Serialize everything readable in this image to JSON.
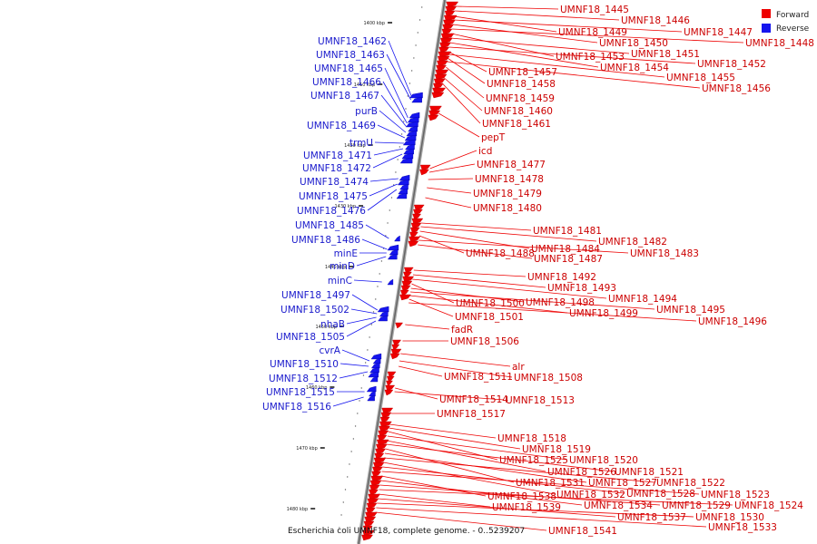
{
  "caption": "Escherichia coli UMNF18, complete genome. - 0..5239207",
  "legend": [
    {
      "label": "Forward",
      "color": "#ee0000"
    },
    {
      "label": "Reverse",
      "color": "#1515ee"
    }
  ],
  "colors": {
    "forward": "#ee0000",
    "reverse": "#1515ee",
    "backbone": "#8a8a8a"
  },
  "kbp_ticks": [
    "1400 kbp",
    "1410 kbp",
    "1420 kbp",
    "1430 kbp",
    "1440 kbp",
    "1450 kbp",
    "1460 kbp",
    "1470 kbp",
    "1480 kbp"
  ],
  "forward_genes": [
    "UMNF18_1445",
    "UMNF18_1446",
    "UMNF18_1449",
    "UMNF18_1447",
    "UMNF18_1450",
    "UMNF18_1448",
    "UMNF18_1453",
    "UMNF18_1451",
    "UMNF18_1454",
    "UMNF18_1452",
    "UMNF18_1457",
    "UMNF18_1455",
    "UMNF18_1458",
    "UMNF18_1456",
    "UMNF18_1459",
    "UMNF18_1460",
    "UMNF18_1461",
    "pepT",
    "icd",
    "UMNF18_1477",
    "UMNF18_1478",
    "UMNF18_1479",
    "UMNF18_1480",
    "UMNF18_1481",
    "UMNF18_1482",
    "UMNF18_1484",
    "UMNF18_1488",
    "UMNF18_1483",
    "UMNF18_1487",
    "UMNF18_1492",
    "UMNF18_1493",
    "UMNF18_1494",
    "UMNF18_1500",
    "UMNF18_1498",
    "UMNF18_1495",
    "UMNF18_1499",
    "UMNF18_1501",
    "UMNF18_1496",
    "fadR",
    "UMNF18_1506",
    "alr",
    "UMNF18_1511",
    "UMNF18_1508",
    "UMNF18_1514",
    "UMNF18_1513",
    "UMNF18_1517",
    "UMNF18_1518",
    "UMNF18_1519",
    "UMNF18_1525",
    "UMNF18_1520",
    "UMNF18_1526",
    "UMNF18_1521",
    "UMNF18_1531",
    "UMNF18_1527",
    "UMNF18_1522",
    "UMNF18_1532",
    "UMNF18_1528",
    "UMNF18_1523",
    "UMNF18_1538",
    "UMNF18_1534",
    "UMNF18_1529",
    "UMNF18_1524",
    "UMNF18_1539",
    "UMNF18_1537",
    "UMNF18_1530",
    "UMNF18_1533",
    "UMNF18_1541"
  ],
  "reverse_genes": [
    "UMNF18_1462",
    "UMNF18_1463",
    "UMNF18_1465",
    "UMNF18_1466",
    "UMNF18_1467",
    "purB",
    "UMNF18_1469",
    "trmU",
    "UMNF18_1471",
    "UMNF18_1472",
    "UMNF18_1474",
    "UMNF18_1475",
    "UMNF18_1476",
    "UMNF18_1485",
    "UMNF18_1486",
    "minE",
    "minD",
    "minC",
    "UMNF18_1497",
    "UMNF18_1502",
    "nhaB",
    "UMNF18_1505",
    "cvrA",
    "UMNF18_1510",
    "UMNF18_1512",
    "UMNF18_1515",
    "UMNF18_1516"
  ]
}
